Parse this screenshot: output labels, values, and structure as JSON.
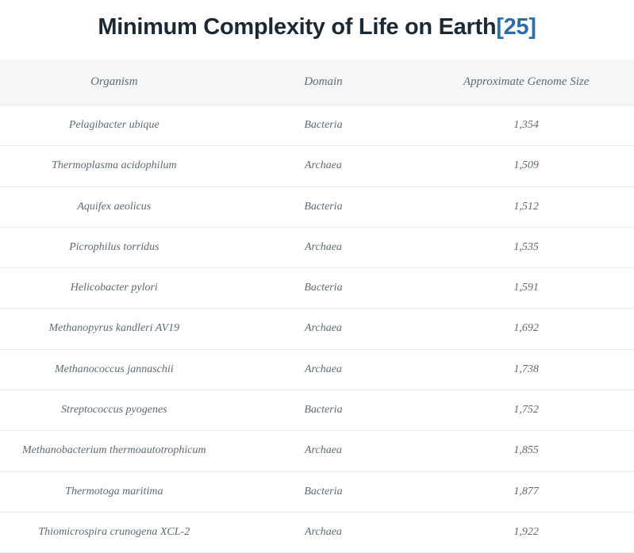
{
  "title": {
    "text": "Minimum Complexity of Life on Earth",
    "reference": "[25]",
    "title_color": "#1c2833",
    "reference_color": "#2d6ea8",
    "fontsize": 29
  },
  "table": {
    "type": "table",
    "header_background": "#f5f6f7",
    "row_border_color": "#ececee",
    "text_color": "#5d6b76",
    "font_style": "italic",
    "header_fontsize": 15,
    "cell_fontsize": 14,
    "columns": [
      "Organism",
      "Domain",
      "Approximate Genome Size"
    ],
    "column_widths_pct": [
      36,
      30,
      34
    ],
    "rows": [
      [
        "Pelagibacter ubique",
        "Bacteria",
        "1,354"
      ],
      [
        "Thermoplasma acidophilum",
        "Archaea",
        "1,509"
      ],
      [
        "Aquifex aeolicus",
        "Bacteria",
        "1,512"
      ],
      [
        "Picrophilus torridus",
        "Archaea",
        "1,535"
      ],
      [
        "Helicobacter pylori",
        "Bacteria",
        "1,591"
      ],
      [
        "Methanopyrus kandleri AV19",
        "Archaea",
        "1,692"
      ],
      [
        "Methanococcus jannaschii",
        "Archaea",
        "1,738"
      ],
      [
        "Streptococcus pyogenes",
        "Bacteria",
        "1,752"
      ],
      [
        "Methanobacterium thermoautotrophicum",
        "Archaea",
        "1,855"
      ],
      [
        "Thermotoga maritima",
        "Bacteria",
        "1,877"
      ],
      [
        "Thiomicrospira crunogena XCL-2",
        "Archaea",
        "1,922"
      ]
    ]
  }
}
